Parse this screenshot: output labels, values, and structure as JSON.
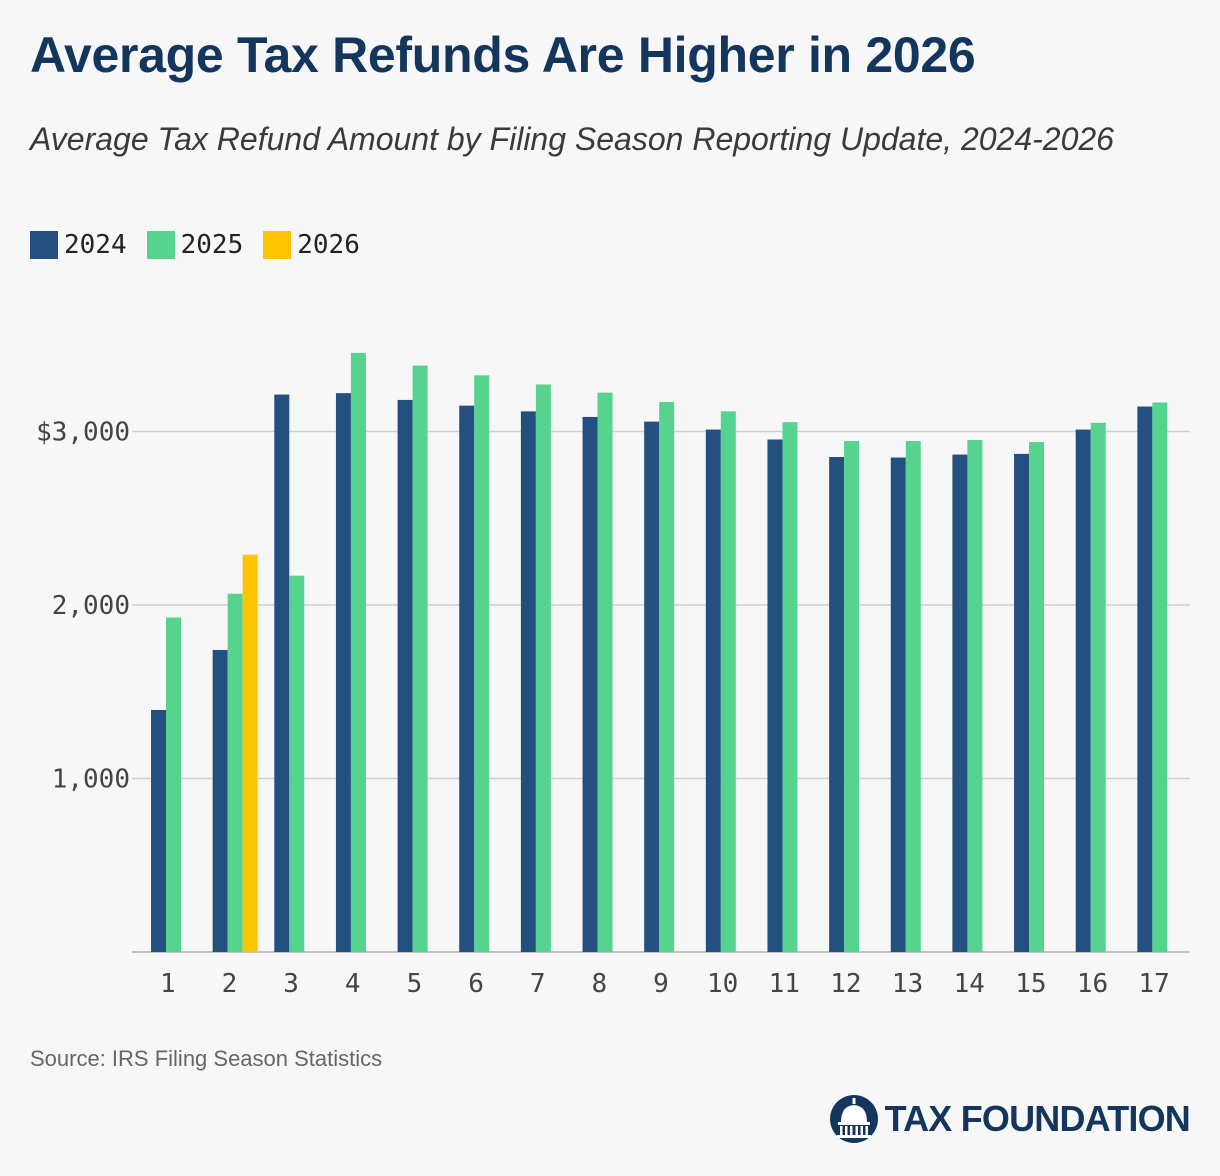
{
  "chart_data": {
    "type": "bar",
    "title": "Average Tax Refunds Are Higher in 2026",
    "subtitle": "Average Tax Refund Amount by Filing Season Reporting Update, 2024-2026",
    "xlabel": "",
    "ylabel": "",
    "ylim": [
      0,
      3600
    ],
    "yticks": [
      {
        "value": 1000,
        "label": "1,000"
      },
      {
        "value": 2000,
        "label": "2,000"
      },
      {
        "value": 3000,
        "label": "$3,000"
      }
    ],
    "grid": true,
    "legend_position": "top-left",
    "categories": [
      "1",
      "2",
      "3",
      "4",
      "5",
      "6",
      "7",
      "8",
      "9",
      "10",
      "11",
      "12",
      "13",
      "14",
      "15",
      "16",
      "17"
    ],
    "series": [
      {
        "name": "2024",
        "color": "#24507f",
        "values": [
          1395,
          1741,
          3213,
          3221,
          3182,
          3149,
          3116,
          3084,
          3057,
          3011,
          2954,
          2853,
          2850,
          2867,
          2871,
          3011,
          3144
        ]
      },
      {
        "name": "2025",
        "color": "#55d38f",
        "values": [
          1928,
          2065,
          2169,
          3453,
          3380,
          3324,
          3271,
          3224,
          3170,
          3116,
          3054,
          2945,
          2945,
          2951,
          2939,
          3050,
          3167
        ]
      },
      {
        "name": "2026",
        "color": "#ffc400",
        "values": [
          null,
          2290,
          null,
          null,
          null,
          null,
          null,
          null,
          null,
          null,
          null,
          null,
          null,
          null,
          null,
          null,
          null
        ]
      }
    ]
  },
  "source": "Source: IRS Filing Season Statistics",
  "logo": {
    "text": "TAX FOUNDATION"
  }
}
